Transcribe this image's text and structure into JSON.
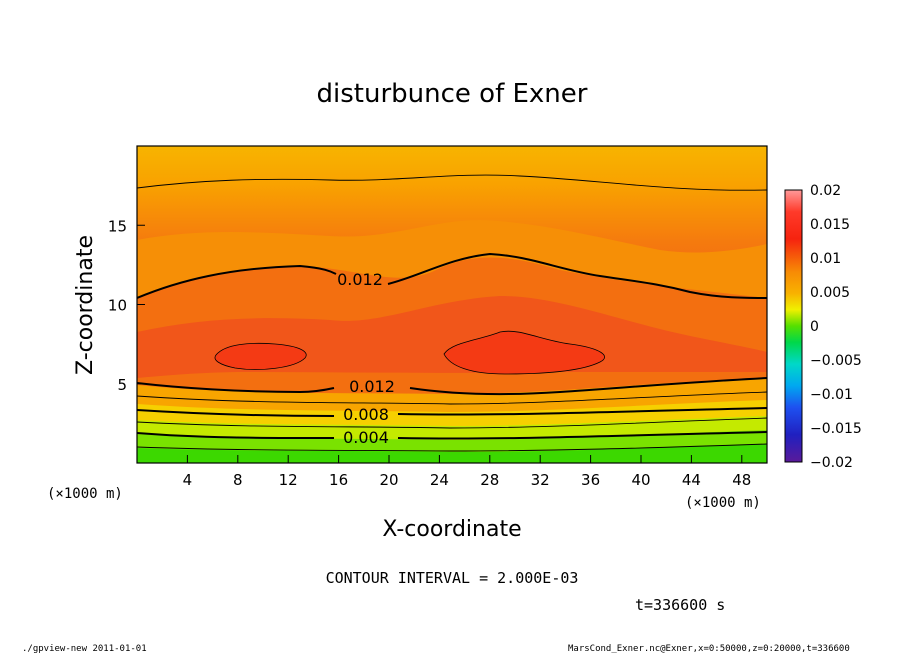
{
  "chart_data": {
    "type": "heatmap",
    "title": "disturbunce of Exner",
    "xlabel": "X-coordinate",
    "ylabel": "Z-coordinate",
    "x_unit": "(×1000 m)",
    "y_unit": "(×1000 m)",
    "xlim": [
      0,
      50
    ],
    "ylim": [
      0,
      20
    ],
    "x_ticks": [
      "4",
      "8",
      "12",
      "16",
      "20",
      "24",
      "28",
      "32",
      "36",
      "40",
      "44",
      "48"
    ],
    "y_ticks": [
      "5",
      "10",
      "15"
    ],
    "colorbar": {
      "ticks": [
        "0.02",
        "0.015",
        "0.01",
        "0.005",
        "0",
        "−0.005",
        "−0.01",
        "−0.015",
        "−0.02"
      ],
      "min": -0.02,
      "max": 0.02
    },
    "contour_labels": [
      "0.012",
      "0.012",
      "0.008",
      "0.004"
    ],
    "contour_interval_text": "CONTOUR INTERVAL = 2.000E-03",
    "time_text": "t=336600 s",
    "footer_left": "./gpview-new  2011-01-01",
    "footer_right": "MarsCond_Exner.nc@Exner,x=0:50000,z=0:20000,t=336600"
  }
}
